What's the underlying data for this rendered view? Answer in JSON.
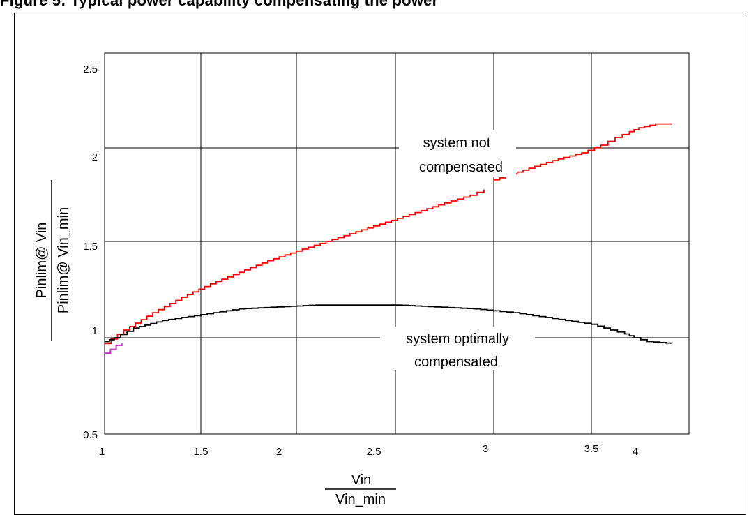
{
  "page": {
    "title": "Figure 5: Typical power capability compensating the power"
  },
  "chart_data": {
    "type": "line",
    "xlabel_numerator": "Vin",
    "xlabel_denominator": "Vin_min",
    "ylabel_numerator": "Pinlim@ Vin",
    "ylabel_denominator": "Pinlim@ Vin_min",
    "x_ticks": [
      {
        "label": "1",
        "value": 1.0
      },
      {
        "label": "1.5",
        "value": 1.5
      },
      {
        "label": "2",
        "value": 2.0
      },
      {
        "label": "2.5",
        "value": 2.5
      },
      {
        "label": "3",
        "value": 3.0
      },
      {
        "label": "3.5",
        "value": 3.5
      },
      {
        "label": "4",
        "value": 4.0
      }
    ],
    "y_ticks": [
      {
        "label": "0.5",
        "value": 0.5
      },
      {
        "label": "1",
        "value": 1.0
      },
      {
        "label": "1.5",
        "value": 1.5
      },
      {
        "label": "2",
        "value": 2.0
      },
      {
        "label": "2.5",
        "value": 2.5
      }
    ],
    "xlim": [
      1,
      4.3
    ],
    "ylim": [
      0.5,
      2.55
    ],
    "grid": true,
    "series": [
      {
        "key": "not-compensated",
        "color": "#ff0000",
        "segments": [
          [
            [
              1.0,
              0.97
            ],
            [
              1.1,
              1.04
            ],
            [
              1.25,
              1.13
            ],
            [
              1.4,
              1.21
            ],
            [
              1.55,
              1.28
            ],
            [
              1.7,
              1.34
            ],
            [
              1.85,
              1.4
            ],
            [
              2.0,
              1.45
            ],
            [
              2.15,
              1.5
            ],
            [
              2.3,
              1.55
            ],
            [
              2.45,
              1.6
            ],
            [
              2.6,
              1.65
            ],
            [
              2.75,
              1.7
            ],
            [
              2.88,
              1.74
            ],
            [
              2.95,
              1.77
            ]
          ],
          [
            [
              3.0,
              1.82
            ],
            [
              3.15,
              1.87
            ],
            [
              3.3,
              1.92
            ],
            [
              3.45,
              1.96
            ],
            [
              3.6,
              2.0
            ],
            [
              3.75,
              2.04
            ],
            [
              3.9,
              2.07
            ],
            [
              4.0,
              2.09
            ],
            [
              4.1,
              2.11
            ],
            [
              4.2,
              2.11
            ]
          ]
        ]
      },
      {
        "key": "optimally-compensated",
        "color": "#000000",
        "segments": [
          [
            [
              1.0,
              0.98
            ],
            [
              1.05,
              1.0
            ],
            [
              1.15,
              1.05
            ],
            [
              1.3,
              1.09
            ],
            [
              1.5,
              1.12
            ],
            [
              1.7,
              1.15
            ],
            [
              1.9,
              1.16
            ],
            [
              2.1,
              1.17
            ],
            [
              2.3,
              1.17
            ],
            [
              2.5,
              1.17
            ],
            [
              2.7,
              1.16
            ],
            [
              2.9,
              1.15
            ],
            [
              3.1,
              1.13
            ],
            [
              3.3,
              1.1
            ],
            [
              3.5,
              1.07
            ],
            [
              3.7,
              1.04
            ],
            [
              3.85,
              1.02
            ],
            [
              3.95,
              1.0
            ],
            [
              4.05,
              0.98
            ],
            [
              4.2,
              0.97
            ]
          ]
        ]
      },
      {
        "key": "magenta-stub",
        "color": "#cc33cc",
        "segments": [
          [
            [
              1.0,
              0.92
            ],
            [
              1.03,
              0.94
            ],
            [
              1.06,
              0.96
            ],
            [
              1.09,
              0.97
            ]
          ]
        ]
      }
    ],
    "annotations": [
      {
        "key": "not-compensated-label",
        "lines": [
          "system not",
          "compensated"
        ]
      },
      {
        "key": "optimally-compensated-label",
        "lines": [
          "system optimally",
          "compensated"
        ]
      }
    ]
  }
}
